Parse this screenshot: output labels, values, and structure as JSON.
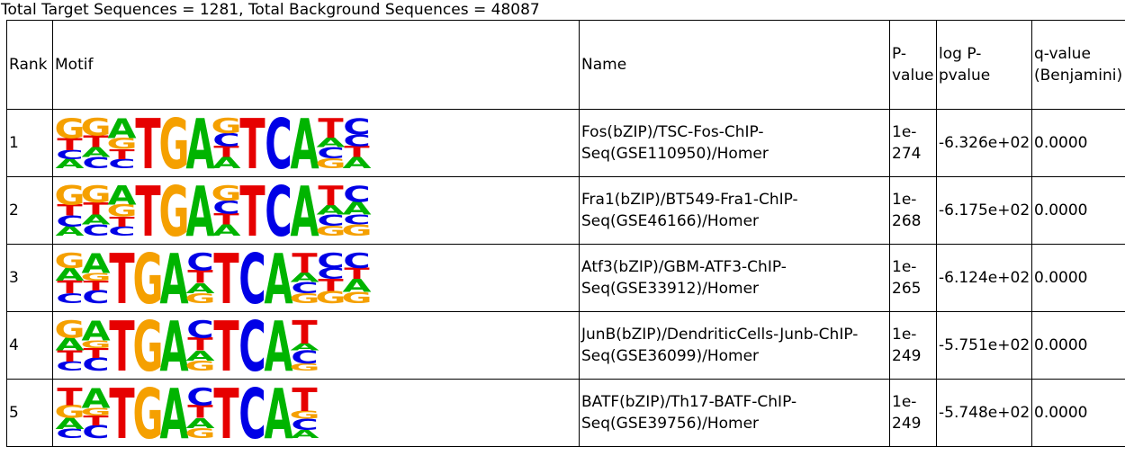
{
  "summary": "Total Target Sequences = 1281, Total Background Sequences = 48087",
  "headers": {
    "rank": "Rank",
    "motif": "Motif",
    "name": "Name",
    "pvalue": "P-value",
    "logp": "log P-pvalue",
    "qvalue": "q-value (Benjamini)"
  },
  "colors": {
    "A": "#00b400",
    "C": "#0000e6",
    "G": "#f5a000",
    "T": "#e60000"
  },
  "rows": [
    {
      "rank": "1",
      "name": "Fos(bZIP)/TSC-Fos-ChIP-Seq(GSE110950)/Homer",
      "pvalue": "1e-274",
      "logp": "-6.326e+02",
      "qvalue": "0.0000",
      "motif_icon": "sequence-logo",
      "logo": [
        [
          [
            "A",
            0.18
          ],
          [
            "C",
            0.18
          ],
          [
            "T",
            0.24
          ],
          [
            "G",
            0.4
          ]
        ],
        [
          [
            "C",
            0.22
          ],
          [
            "A",
            0.2
          ],
          [
            "T",
            0.23
          ],
          [
            "G",
            0.35
          ]
        ],
        [
          [
            "C",
            0.18
          ],
          [
            "T",
            0.2
          ],
          [
            "G",
            0.22
          ],
          [
            "A",
            0.4
          ]
        ],
        [
          [
            "T",
            1.0
          ]
        ],
        [
          [
            "G",
            1.0
          ]
        ],
        [
          [
            "A",
            1.0
          ]
        ],
        [
          [
            "A",
            0.22
          ],
          [
            "T",
            0.22
          ],
          [
            "C",
            0.26
          ],
          [
            "G",
            0.3
          ]
        ],
        [
          [
            "T",
            1.0
          ]
        ],
        [
          [
            "C",
            1.0
          ]
        ],
        [
          [
            "A",
            1.0
          ]
        ],
        [
          [
            "G",
            0.2
          ],
          [
            "C",
            0.22
          ],
          [
            "A",
            0.18
          ],
          [
            "T",
            0.4
          ]
        ],
        [
          [
            "A",
            0.22
          ],
          [
            "T",
            0.22
          ],
          [
            "C",
            0.23
          ],
          [
            "C",
            0.33
          ]
        ]
      ]
    },
    {
      "rank": "2",
      "name": "Fra1(bZIP)/BT549-Fra1-ChIP-Seq(GSE46166)/Homer",
      "pvalue": "1e-268",
      "logp": "-6.175e+02",
      "qvalue": "0.0000",
      "motif_icon": "sequence-logo",
      "logo": [
        [
          [
            "A",
            0.18
          ],
          [
            "C",
            0.22
          ],
          [
            "T",
            0.22
          ],
          [
            "G",
            0.38
          ]
        ],
        [
          [
            "C",
            0.22
          ],
          [
            "A",
            0.2
          ],
          [
            "T",
            0.24
          ],
          [
            "G",
            0.34
          ]
        ],
        [
          [
            "C",
            0.18
          ],
          [
            "T",
            0.2
          ],
          [
            "G",
            0.24
          ],
          [
            "A",
            0.38
          ]
        ],
        [
          [
            "T",
            1.0
          ]
        ],
        [
          [
            "G",
            1.0
          ]
        ],
        [
          [
            "A",
            1.0
          ]
        ],
        [
          [
            "A",
            0.22
          ],
          [
            "T",
            0.22
          ],
          [
            "C",
            0.26
          ],
          [
            "G",
            0.3
          ]
        ],
        [
          [
            "T",
            1.0
          ]
        ],
        [
          [
            "C",
            1.0
          ]
        ],
        [
          [
            "A",
            1.0
          ]
        ],
        [
          [
            "G",
            0.2
          ],
          [
            "C",
            0.22
          ],
          [
            "A",
            0.18
          ],
          [
            "T",
            0.4
          ]
        ],
        [
          [
            "G",
            0.22
          ],
          [
            "C",
            0.2
          ],
          [
            "A",
            0.25
          ],
          [
            "C",
            0.33
          ]
        ]
      ]
    },
    {
      "rank": "3",
      "name": "Atf3(bZIP)/GBM-ATF3-ChIP-Seq(GSE33912)/Homer",
      "pvalue": "1e-265",
      "logp": "-6.124e+02",
      "qvalue": "0.0000",
      "motif_icon": "sequence-logo",
      "logo": [
        [
          [
            "C",
            0.2
          ],
          [
            "T",
            0.25
          ],
          [
            "A",
            0.25
          ],
          [
            "G",
            0.3
          ]
        ],
        [
          [
            "C",
            0.25
          ],
          [
            "T",
            0.2
          ],
          [
            "G",
            0.15
          ],
          [
            "A",
            0.4
          ]
        ],
        [
          [
            "T",
            1.0
          ]
        ],
        [
          [
            "G",
            1.0
          ]
        ],
        [
          [
            "A",
            1.0
          ]
        ],
        [
          [
            "G",
            0.2
          ],
          [
            "A",
            0.2
          ],
          [
            "T",
            0.25
          ],
          [
            "C",
            0.35
          ]
        ],
        [
          [
            "T",
            1.0
          ]
        ],
        [
          [
            "C",
            1.0
          ]
        ],
        [
          [
            "A",
            1.0
          ]
        ],
        [
          [
            "G",
            0.2
          ],
          [
            "C",
            0.22
          ],
          [
            "A",
            0.18
          ],
          [
            "T",
            0.4
          ]
        ],
        [
          [
            "G",
            0.24
          ],
          [
            "T",
            0.24
          ],
          [
            "C",
            0.22
          ],
          [
            "C",
            0.3
          ]
        ],
        [
          [
            "G",
            0.22
          ],
          [
            "A",
            0.26
          ],
          [
            "T",
            0.22
          ],
          [
            "C",
            0.3
          ]
        ]
      ]
    },
    {
      "rank": "4",
      "name": "JunB(bZIP)/DendriticCells-Junb-ChIP-Seq(GSE36099)/Homer",
      "pvalue": "1e-249",
      "logp": "-5.751e+02",
      "qvalue": "0.0000",
      "motif_icon": "sequence-logo",
      "logo": [
        [
          [
            "C",
            0.18
          ],
          [
            "T",
            0.22
          ],
          [
            "A",
            0.25
          ],
          [
            "G",
            0.35
          ]
        ],
        [
          [
            "C",
            0.25
          ],
          [
            "T",
            0.2
          ],
          [
            "G",
            0.15
          ],
          [
            "A",
            0.4
          ]
        ],
        [
          [
            "T",
            1.0
          ]
        ],
        [
          [
            "G",
            1.0
          ]
        ],
        [
          [
            "A",
            1.0
          ]
        ],
        [
          [
            "G",
            0.2
          ],
          [
            "A",
            0.2
          ],
          [
            "T",
            0.25
          ],
          [
            "C",
            0.35
          ]
        ],
        [
          [
            "T",
            1.0
          ]
        ],
        [
          [
            "C",
            1.0
          ]
        ],
        [
          [
            "A",
            1.0
          ]
        ],
        [
          [
            "G",
            0.14
          ],
          [
            "C",
            0.26
          ],
          [
            "A",
            0.14
          ],
          [
            "T",
            0.46
          ]
        ]
      ]
    },
    {
      "rank": "5",
      "name": "BATF(bZIP)/Th17-BATF-ChIP-Seq(GSE39756)/Homer",
      "pvalue": "1e-249",
      "logp": "-5.748e+02",
      "qvalue": "0.0000",
      "motif_icon": "sequence-logo",
      "logo": [
        [
          [
            "C",
            0.18
          ],
          [
            "A",
            0.22
          ],
          [
            "G",
            0.25
          ],
          [
            "T",
            0.35
          ]
        ],
        [
          [
            "C",
            0.25
          ],
          [
            "T",
            0.2
          ],
          [
            "G",
            0.15
          ],
          [
            "A",
            0.4
          ]
        ],
        [
          [
            "T",
            1.0
          ]
        ],
        [
          [
            "G",
            1.0
          ]
        ],
        [
          [
            "A",
            1.0
          ]
        ],
        [
          [
            "G",
            0.2
          ],
          [
            "A",
            0.2
          ],
          [
            "T",
            0.25
          ],
          [
            "C",
            0.35
          ]
        ],
        [
          [
            "T",
            1.0
          ]
        ],
        [
          [
            "C",
            1.0
          ]
        ],
        [
          [
            "A",
            1.0
          ]
        ],
        [
          [
            "A",
            0.16
          ],
          [
            "C",
            0.22
          ],
          [
            "G",
            0.16
          ],
          [
            "T",
            0.46
          ]
        ]
      ]
    }
  ]
}
